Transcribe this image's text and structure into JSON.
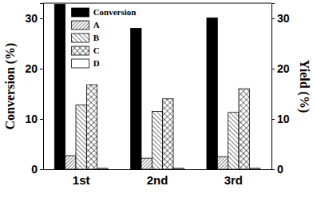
{
  "chart_data": {
    "type": "bar",
    "categories": [
      "1st",
      "2nd",
      "3rd"
    ],
    "y_label": "Conversion (%)",
    "y2_label": "Yield (%)",
    "series": [
      {
        "name": "Conversion",
        "color": "#000000",
        "values": [
          32.8,
          28.0,
          30.1
        ]
      },
      {
        "name": "A",
        "color": "#000000",
        "axis": "y2",
        "values": [
          2.7,
          2.2,
          2.5
        ]
      },
      {
        "name": "B",
        "color": "#000000",
        "axis": "y2",
        "values": [
          12.8,
          11.5,
          11.3
        ]
      },
      {
        "name": "C",
        "color": "#000000",
        "axis": "y2",
        "values": [
          16.8,
          14.0,
          16.0
        ]
      },
      {
        "name": "D",
        "color": "#ffffff",
        "axis": "y2",
        "values": [
          0.2,
          0.2,
          0.2
        ]
      }
    ],
    "ylim": [
      0,
      33
    ],
    "yticks": [
      0,
      10,
      20,
      30
    ],
    "y2lim": [
      0,
      33
    ],
    "y2ticks": [
      0,
      10,
      20,
      30
    ],
    "legend": "upper left"
  }
}
